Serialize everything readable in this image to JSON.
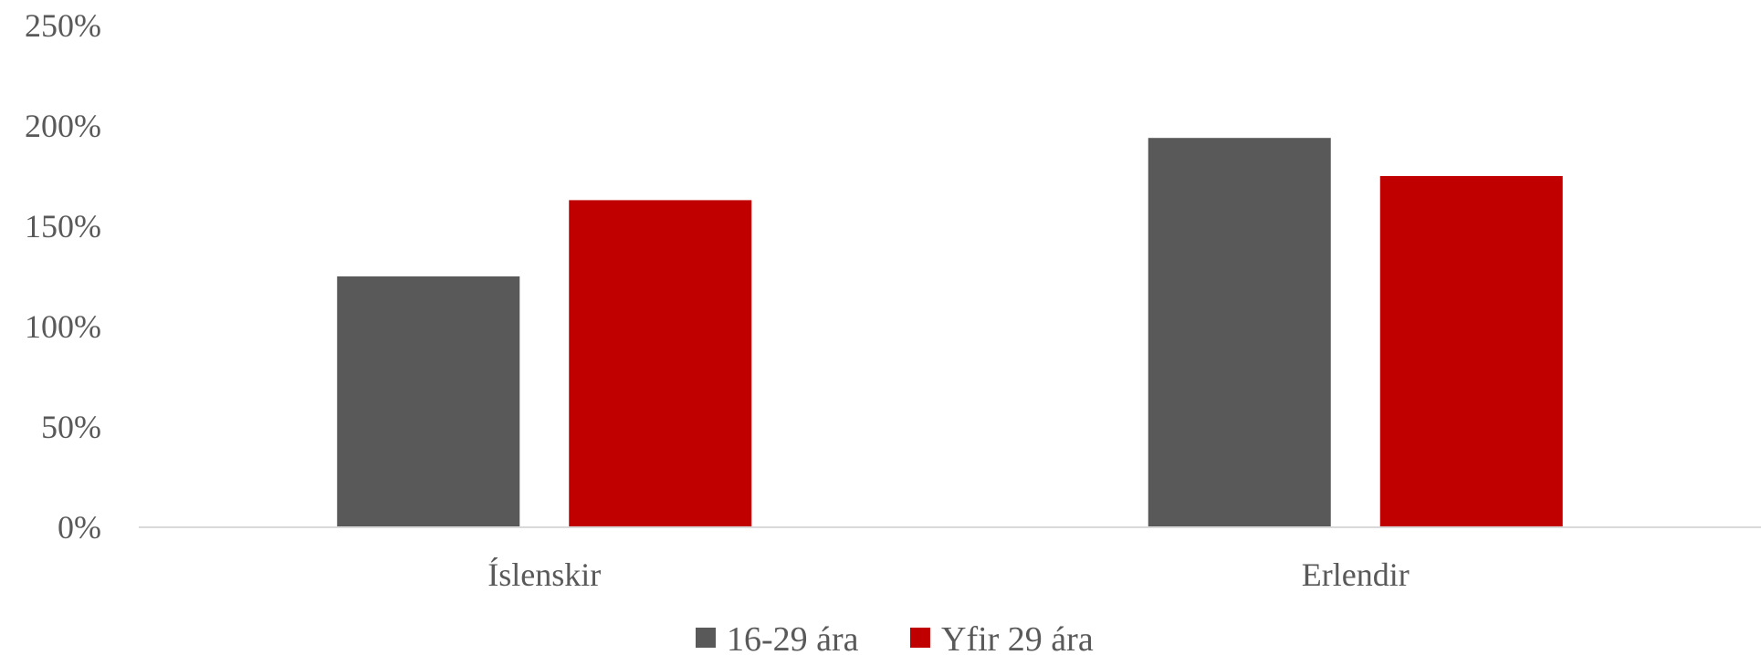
{
  "chart_data": {
    "type": "bar",
    "categories": [
      "Íslenskir",
      "Erlendir"
    ],
    "series": [
      {
        "name": "16-29 ára",
        "values": [
          125,
          194
        ],
        "color": "#595959"
      },
      {
        "name": "Yfir 29 ára",
        "values": [
          163,
          175
        ],
        "color": "#c00000"
      }
    ],
    "y_ticks": [
      "0%",
      "50%",
      "100%",
      "150%",
      "200%",
      "250%"
    ],
    "y_tick_values": [
      0,
      50,
      100,
      150,
      200,
      250
    ],
    "ylim": [
      0,
      250
    ],
    "grid": false,
    "legend_position": "bottom",
    "axis_color": "#d9d9d9",
    "text_color": "#595959"
  }
}
